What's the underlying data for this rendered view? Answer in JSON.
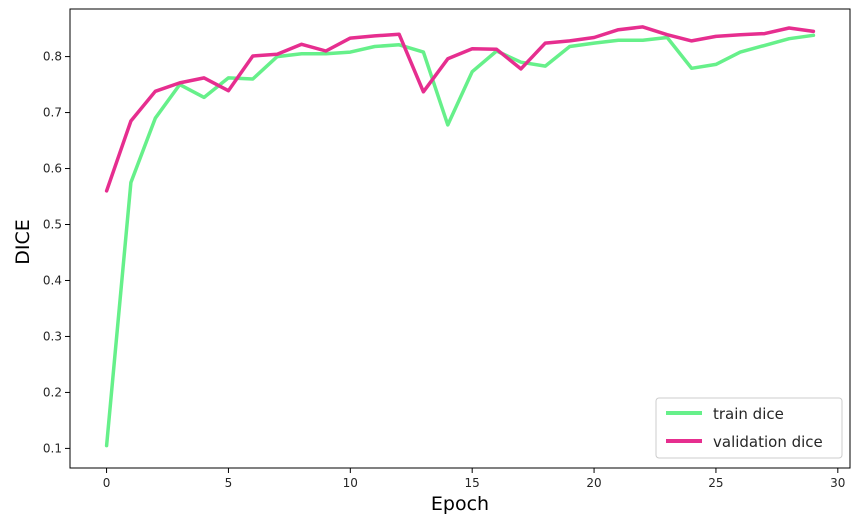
{
  "chart_data": {
    "type": "line",
    "xlabel": "Epoch",
    "ylabel": "DICE",
    "xlim": [
      -1.5,
      30.5
    ],
    "ylim": [
      0.065,
      0.885
    ],
    "xticks": [
      0,
      5,
      10,
      15,
      20,
      25,
      30
    ],
    "yticks": [
      0.1,
      0.2,
      0.3,
      0.4,
      0.5,
      0.6,
      0.7,
      0.8
    ],
    "legend_position": "lower-right",
    "grid": false,
    "x": [
      0,
      1,
      2,
      3,
      4,
      5,
      6,
      7,
      8,
      9,
      10,
      11,
      12,
      13,
      14,
      15,
      16,
      17,
      18,
      19,
      20,
      21,
      22,
      23,
      24,
      25,
      26,
      27,
      28,
      29
    ],
    "series": [
      {
        "name": "train dice",
        "color": "#66f08a",
        "values": [
          0.105,
          0.575,
          0.69,
          0.75,
          0.727,
          0.762,
          0.76,
          0.8,
          0.805,
          0.805,
          0.808,
          0.818,
          0.821,
          0.808,
          0.678,
          0.773,
          0.81,
          0.79,
          0.783,
          0.818,
          0.824,
          0.829,
          0.829,
          0.834,
          0.779,
          0.786,
          0.808,
          0.82,
          0.832,
          0.838
        ]
      },
      {
        "name": "validation dice",
        "color": "#e62e8f",
        "values": [
          0.56,
          0.685,
          0.738,
          0.753,
          0.762,
          0.739,
          0.801,
          0.804,
          0.822,
          0.81,
          0.833,
          0.837,
          0.84,
          0.737,
          0.796,
          0.814,
          0.813,
          0.778,
          0.824,
          0.828,
          0.834,
          0.848,
          0.853,
          0.839,
          0.828,
          0.836,
          0.839,
          0.841,
          0.851,
          0.845
        ]
      }
    ]
  }
}
